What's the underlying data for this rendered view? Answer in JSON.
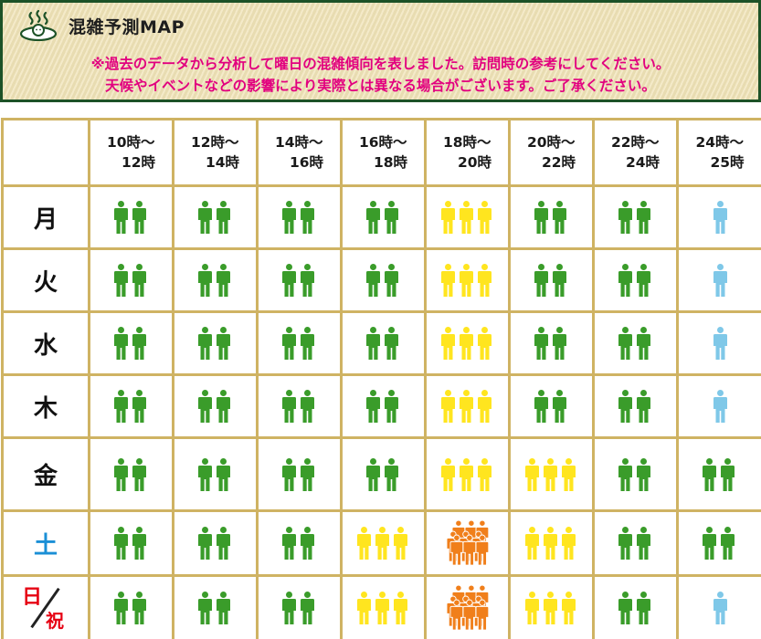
{
  "header": {
    "title": "混雑予測MAP",
    "icon": "onsen-icon",
    "notice_line1": "※過去のデータから分析して曜日の混雑傾向を表しました。訪問時の参考にしてください。",
    "notice_line2": "天候やイベントなどの影響により実際とは異なる場合がございます。ご了承ください。"
  },
  "colors": {
    "low": "#7fc8e8",
    "normal": "#3a9c2a",
    "busy": "#ffe51f",
    "very_busy": "#f07f1b"
  },
  "time_slots": [
    {
      "from": "10時～",
      "to": "12時"
    },
    {
      "from": "12時～",
      "to": "14時"
    },
    {
      "from": "14時～",
      "to": "16時"
    },
    {
      "from": "16時～",
      "to": "18時"
    },
    {
      "from": "18時～",
      "to": "20時"
    },
    {
      "from": "20時～",
      "to": "22時"
    },
    {
      "from": "22時～",
      "to": "24時"
    },
    {
      "from": "24時～",
      "to": "25時"
    }
  ],
  "days": [
    {
      "label": "月",
      "levels": [
        2,
        2,
        2,
        2,
        3,
        2,
        2,
        1
      ]
    },
    {
      "label": "火",
      "levels": [
        2,
        2,
        2,
        2,
        3,
        2,
        2,
        1
      ]
    },
    {
      "label": "水",
      "levels": [
        2,
        2,
        2,
        2,
        3,
        2,
        2,
        1
      ]
    },
    {
      "label": "木",
      "levels": [
        2,
        2,
        2,
        2,
        3,
        2,
        2,
        1
      ]
    },
    {
      "label": "金",
      "levels": [
        2,
        2,
        2,
        2,
        3,
        3,
        2,
        2
      ]
    },
    {
      "label": "土",
      "levels": [
        2,
        2,
        2,
        3,
        4,
        3,
        2,
        2
      ],
      "style": "saturday"
    },
    {
      "label_top": "日",
      "label_bottom": "祝",
      "levels": [
        2,
        2,
        2,
        3,
        4,
        3,
        2,
        1
      ],
      "style": "holiday"
    }
  ]
}
